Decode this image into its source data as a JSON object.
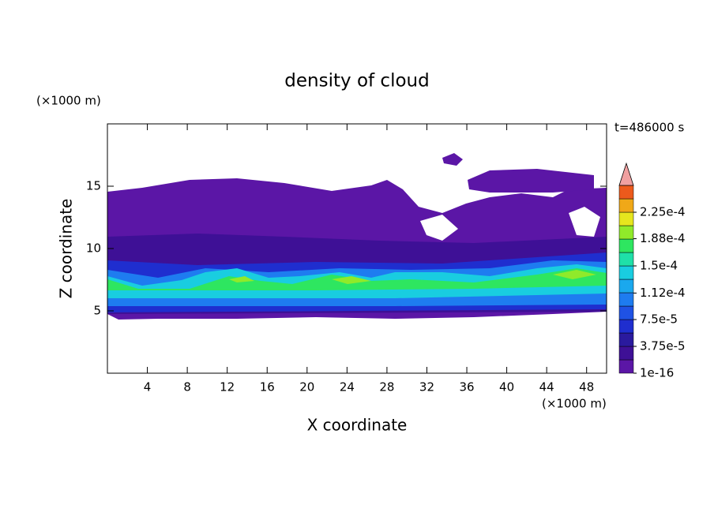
{
  "chart_data": {
    "type": "contour",
    "title": "density of cloud",
    "x_label": "X coordinate",
    "y_label": "Z coordinate",
    "x_unit": "(×1000 m)",
    "y_unit": "(×1000 m)",
    "time_label": "t=486000 s",
    "xlim": [
      0,
      50
    ],
    "xticks": [
      4,
      8,
      12,
      16,
      20,
      24,
      28,
      32,
      36,
      40,
      44,
      48
    ],
    "ylim": [
      0,
      20
    ],
    "yticks": [
      5,
      10,
      15
    ],
    "clim": [
      1e-16,
      0.0002625
    ],
    "cticks": [
      1e-16,
      {
        "value": 3.75e-05,
        "label": "3.75e-5"
      },
      {
        "value": 7.5e-05,
        "label": "7.5e-5"
      },
      {
        "value": 0.000112,
        "label": "1.12e-4"
      },
      {
        "value": 0.00015,
        "label": "1.5e-4"
      },
      {
        "value": 0.000188,
        "label": "1.88e-4"
      },
      {
        "value": 0.000225,
        "label": "2.25e-4"
      }
    ],
    "colors": [
      "#5b16a6",
      "#3e1096",
      "#2a1a9e",
      "#1f2ecf",
      "#1f52e4",
      "#1e7cf0",
      "#1aa8ee",
      "#19cde0",
      "#1fe0a8",
      "#2ee660",
      "#90ea2a",
      "#e6e61e",
      "#f0a818",
      "#ec5a1c"
    ],
    "extend_color": "#f0a0a0"
  }
}
